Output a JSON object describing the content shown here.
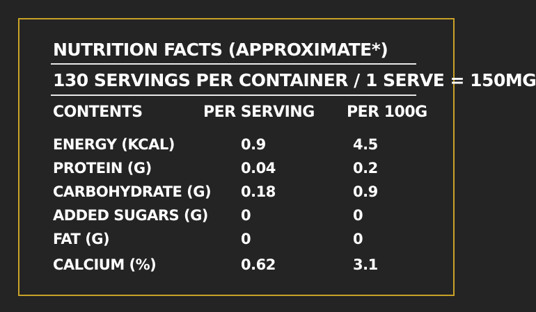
{
  "title": "NUTRITION FACTS (APPROXIMATE*)",
  "subtitle": "130 SERVINGS PER CONTAINER / 1 SERVE = 150MG",
  "headers": {
    "contents": "CONTENTS",
    "per_serving": "PER SERVING",
    "per_100g": "PER 100G"
  },
  "rows": [
    {
      "label": "ENERGY (KCAL)",
      "per_serving": "0.9",
      "per_100g": "4.5"
    },
    {
      "label": "PROTEIN (G)",
      "per_serving": "0.04",
      "per_100g": "0.2"
    },
    {
      "label": "CARBOHYDRATE (G)",
      "per_serving": "0.18",
      "per_100g": "0.9"
    },
    {
      "label": "ADDED SUGARS (G)",
      "per_serving": "0",
      "per_100g": "0"
    },
    {
      "label": "FAT (G)",
      "per_serving": "0",
      "per_100g": "0"
    },
    {
      "label": "CALCIUM (%)",
      "per_serving": "0.62",
      "per_100g": "3.1"
    }
  ],
  "colors": {
    "background": "#242424",
    "frame": "#c9a227",
    "text": "#ffffff"
  }
}
